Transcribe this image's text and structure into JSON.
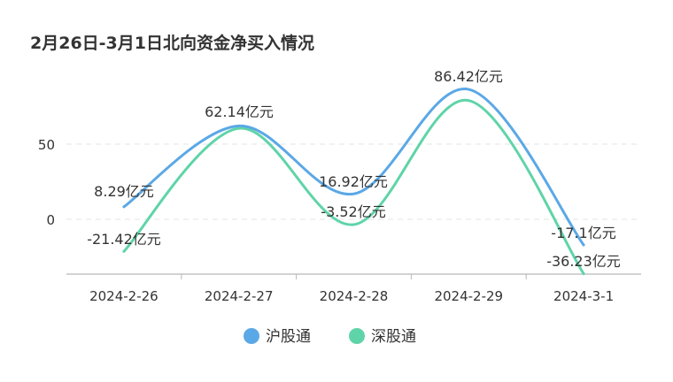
{
  "chart_data": {
    "type": "line",
    "title": "2月26日-3月1日北向资金净买入情况",
    "categories": [
      "2024-2-26",
      "2024-2-27",
      "2024-2-28",
      "2024-2-29",
      "2024-3-1"
    ],
    "yticks": [
      "50",
      "0"
    ],
    "ylim": [
      -37,
      95
    ],
    "grid": true,
    "legend_position": "bottom",
    "series": [
      {
        "name": "沪股通",
        "color": "#5ba8e6",
        "values": [
          8.29,
          62.14,
          16.92,
          86.42,
          -17.1
        ],
        "labels": [
          "8.29亿元",
          "62.14亿元",
          "16.92亿元",
          "86.42亿元",
          "-17.1亿元"
        ]
      },
      {
        "name": "深股通",
        "color": "#5fd4a8",
        "values": [
          -21.42,
          60.5,
          -3.52,
          79.0,
          -36.23
        ],
        "labels": [
          "-21.42亿元",
          "",
          "-3.52亿元",
          "",
          "-36.23亿元"
        ]
      }
    ]
  }
}
